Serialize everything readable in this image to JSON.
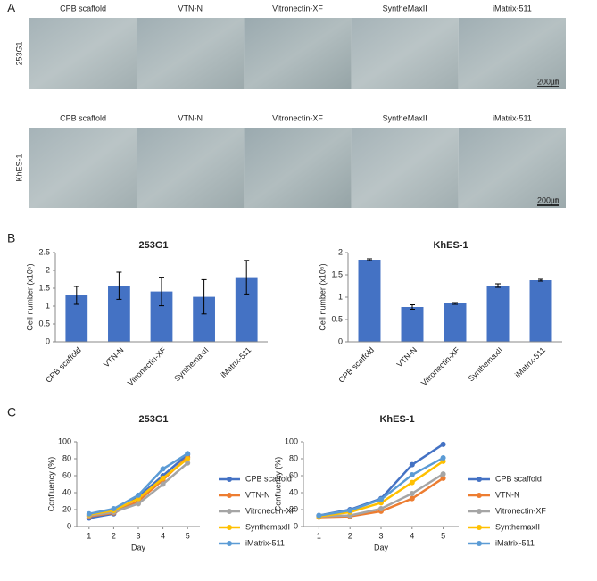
{
  "panel_labels": [
    "A",
    "B",
    "C"
  ],
  "panel_a": {
    "rows": [
      {
        "label": "253G1",
        "columns": [
          "CPB scaffold",
          "VTN-N",
          "Vitronectin-XF",
          "SyntheMaxII",
          "iMatrix-511"
        ],
        "scale": "200㎛"
      },
      {
        "label": "KhES-1",
        "columns": [
          "CPB scaffold",
          "VTN-N",
          "Vitronectin-XF",
          "SyntheMaxII",
          "iMatrix-511"
        ],
        "scale": "200㎛"
      }
    ]
  },
  "chart_data": [
    {
      "type": "bar",
      "title": "253G1",
      "y_label": "Cell number (x10⁶)",
      "categories": [
        "CPB scaffold",
        "VTN-N",
        "Vitronectin-XF",
        "SynthemaxII",
        "iMatrix-511"
      ],
      "values": [
        1.3,
        1.57,
        1.41,
        1.26,
        1.81
      ],
      "errors": [
        0.25,
        0.38,
        0.4,
        0.48,
        0.47
      ],
      "color": "#4472c4",
      "ylim": [
        0,
        2.5
      ],
      "yticks": [
        0,
        0.5,
        1,
        1.5,
        2,
        2.5
      ],
      "grid": false
    },
    {
      "type": "bar",
      "title": "KhES-1",
      "y_label": "Cell number (x10⁶)",
      "categories": [
        "CPB scaffold",
        "VTN-N",
        "Vitronectin-XF",
        "SynthemaxII",
        "iMatrix-511"
      ],
      "values": [
        1.84,
        0.78,
        0.86,
        1.26,
        1.38
      ],
      "errors": [
        0.02,
        0.05,
        0.02,
        0.04,
        0.02
      ],
      "color": "#4472c4",
      "ylim": [
        0,
        2
      ],
      "yticks": [
        0,
        0.5,
        1,
        1.5,
        2
      ],
      "grid": false
    },
    {
      "type": "line",
      "title": "253G1",
      "x_label": "Day",
      "y_label": "Confluency (%)",
      "x": [
        1,
        2,
        3,
        4,
        5
      ],
      "xlim": [
        0.5,
        5.5
      ],
      "xticks": [
        1,
        2,
        3,
        4,
        5
      ],
      "ylim": [
        0,
        100
      ],
      "yticks": [
        0,
        20,
        40,
        60,
        80,
        100
      ],
      "grid": false,
      "legend": "right",
      "series": [
        {
          "name": "CPB scaffold",
          "color": "#4472c4",
          "values": [
            10,
            15,
            35,
            60,
            85
          ]
        },
        {
          "name": "VTN-N",
          "color": "#ed7d31",
          "values": [
            12,
            16,
            30,
            55,
            82
          ]
        },
        {
          "name": "Vitronectin-XF",
          "color": "#a5a5a5",
          "values": [
            13,
            17,
            27,
            50,
            75
          ]
        },
        {
          "name": "SynthemaxII",
          "color": "#ffc000",
          "values": [
            14,
            19,
            33,
            57,
            80
          ]
        },
        {
          "name": "iMatrix-511",
          "color": "#5b9bd5",
          "values": [
            15,
            21,
            37,
            68,
            86
          ]
        }
      ]
    },
    {
      "type": "line",
      "title": "KhES-1",
      "x_label": "Day",
      "y_label": "Confluency (%)",
      "x": [
        1,
        2,
        3,
        4,
        5
      ],
      "xlim": [
        0.5,
        5.5
      ],
      "xticks": [
        1,
        2,
        3,
        4,
        5
      ],
      "ylim": [
        0,
        100
      ],
      "yticks": [
        0,
        20,
        40,
        60,
        80,
        100
      ],
      "grid": false,
      "legend": "right",
      "series": [
        {
          "name": "CPB scaffold",
          "color": "#4472c4",
          "values": [
            13,
            20,
            33,
            73,
            97
          ]
        },
        {
          "name": "VTN-N",
          "color": "#ed7d31",
          "values": [
            11,
            12,
            18,
            33,
            57
          ]
        },
        {
          "name": "Vitronectin-XF",
          "color": "#a5a5a5",
          "values": [
            12,
            13,
            21,
            39,
            62
          ]
        },
        {
          "name": "SynthemaxII",
          "color": "#ffc000",
          "values": [
            12,
            17,
            28,
            52,
            77
          ]
        },
        {
          "name": "iMatrix-511",
          "color": "#5b9bd5",
          "values": [
            13,
            19,
            32,
            61,
            81
          ]
        }
      ]
    }
  ]
}
